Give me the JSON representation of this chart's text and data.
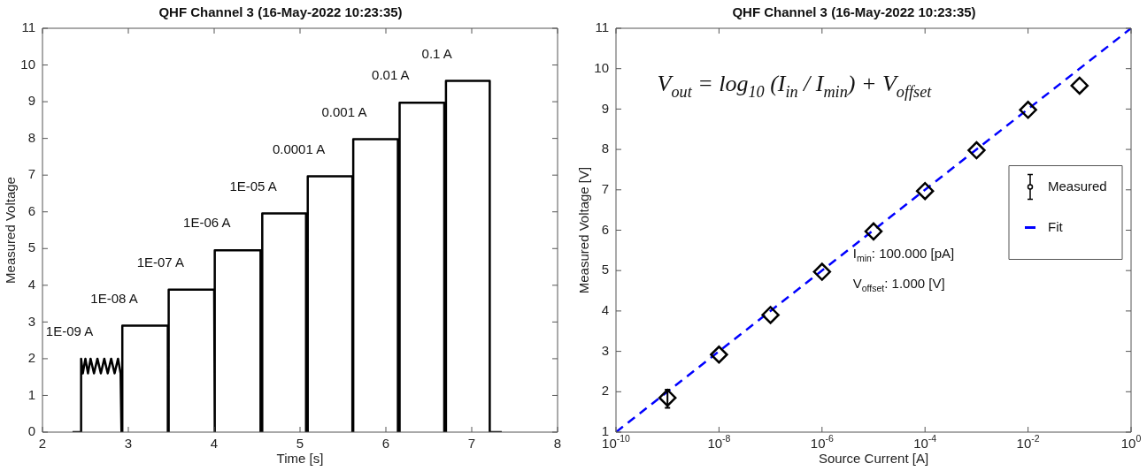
{
  "chart_data": [
    {
      "type": "line",
      "title": "QHF Channel 3 (16-May-2022 10:23:35)",
      "xlabel": "Time [s]",
      "ylabel": "Measured Voltage",
      "xlim": [
        2,
        8
      ],
      "xticks": [
        2,
        3,
        4,
        5,
        6,
        7,
        8
      ],
      "ylim": [
        0,
        11
      ],
      "yticks": [
        0,
        1,
        2,
        3,
        4,
        5,
        6,
        7,
        8,
        9,
        10,
        11
      ],
      "grid": false,
      "marker": "none",
      "line_style": "solid",
      "series": [
        {
          "color": "#000000",
          "x": [
            2.35,
            2.45,
            2.45,
            2.47,
            2.5,
            2.53,
            2.56,
            2.6,
            2.64,
            2.68,
            2.72,
            2.76,
            2.8,
            2.84,
            2.88,
            2.91,
            2.92,
            2.93,
            2.93,
            3.46,
            3.46,
            3.47,
            3.47,
            4.0,
            4.0,
            4.01,
            4.01,
            4.54,
            4.54,
            4.56,
            4.56,
            5.07,
            5.07,
            5.09,
            5.09,
            5.61,
            5.61,
            5.62,
            5.62,
            6.14,
            6.14,
            6.16,
            6.16,
            6.68,
            6.68,
            6.7,
            6.7,
            7.21,
            7.21,
            7.35
          ],
          "values": [
            0,
            0,
            2.0,
            1.6,
            2.0,
            1.6,
            2.0,
            1.6,
            2.0,
            1.6,
            2.0,
            1.6,
            2.0,
            1.6,
            2.0,
            1.6,
            0,
            0,
            2.9,
            2.9,
            0,
            0,
            3.88,
            3.88,
            0,
            0,
            4.95,
            4.95,
            0,
            0,
            5.96,
            5.96,
            0,
            0,
            6.97,
            6.97,
            0,
            0,
            7.98,
            7.98,
            0,
            0,
            8.97,
            8.97,
            0,
            0,
            9.57,
            9.57,
            0,
            0
          ]
        }
      ],
      "annotations": [
        {
          "text": "1E-09 A",
          "x": 2.68,
          "y": 2.0
        },
        {
          "text": "1E-08 A",
          "x": 3.2,
          "y": 2.9
        },
        {
          "text": "1E-07 A",
          "x": 3.74,
          "y": 3.88
        },
        {
          "text": "1E-06 A",
          "x": 4.28,
          "y": 4.95
        },
        {
          "text": "1E-05 A",
          "x": 4.82,
          "y": 5.96
        },
        {
          "text": "0.0001 A",
          "x": 5.35,
          "y": 6.97
        },
        {
          "text": "0.001 A",
          "x": 5.88,
          "y": 7.98
        },
        {
          "text": "0.01 A",
          "x": 6.42,
          "y": 8.97
        },
        {
          "text": "0.1 A",
          "x": 6.96,
          "y": 9.57
        }
      ]
    },
    {
      "type": "scatter",
      "title": "QHF Channel 3 (16-May-2022 10:23:35)",
      "xlabel": "Source Current [A]",
      "ylabel": "Measured Voltage [V]",
      "log": "x",
      "grid": false,
      "legend": "right",
      "xlim": [
        1e-10,
        1
      ],
      "xticks": [
        {
          "value": 1e-10,
          "label": "10$^{-10}$"
        },
        {
          "value": 1e-08,
          "label": "10$^{-8}$"
        },
        {
          "value": 1e-06,
          "label": "10$^{-6}$"
        },
        {
          "value": 0.0001,
          "label": "10$^{-4}$"
        },
        {
          "value": 0.01,
          "label": "10$^{-2}$"
        },
        {
          "value": 1,
          "label": "10$^{0}$"
        }
      ],
      "ylim": [
        1,
        11
      ],
      "yticks": [
        1,
        2,
        3,
        4,
        5,
        6,
        7,
        8,
        9,
        10,
        11
      ],
      "series": [
        {
          "name": "Measured",
          "marker": "diamond",
          "color": "#000000",
          "x": [
            1e-09,
            1e-08,
            1e-07,
            1e-06,
            1e-05,
            0.0001,
            0.001,
            0.01,
            0.1
          ],
          "values": [
            1.85,
            2.92,
            3.9,
            4.97,
            5.97,
            6.97,
            7.98,
            8.98,
            9.58
          ],
          "errors": [
            [
              1.6,
              2.05
            ],
            null,
            null,
            null,
            null,
            null,
            null,
            null,
            null
          ]
        },
        {
          "name": "Fit",
          "type": "line",
          "marker": "none",
          "line_style": "dashed",
          "color": "#0000ff",
          "x": [
            1e-10,
            1
          ],
          "values": [
            1,
            11
          ]
        }
      ],
      "annotations": [
        "V$_{out}$ = log$_{10}$ (I$_{in}$ / I$_{min}$) + V$_{offset}$",
        "I$_{min}$: 100.000 [pA]",
        "V$_{offset}$: 1.000 [V]"
      ]
    }
  ]
}
